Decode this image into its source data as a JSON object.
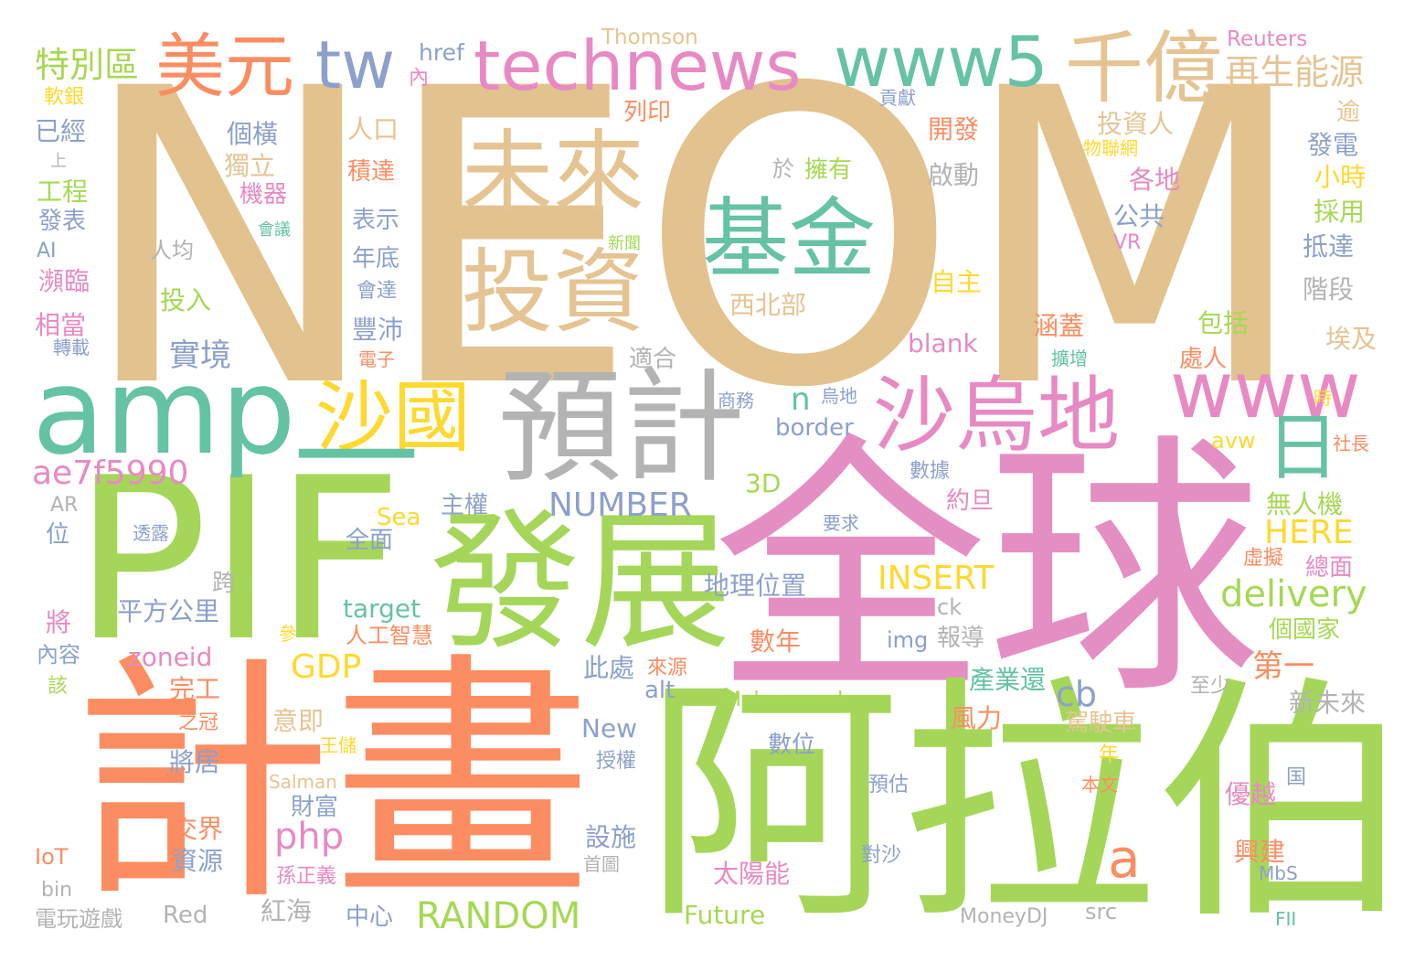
{
  "words": [
    {
      "text": "NEOM",
      "color": "#e2c28f"
    },
    {
      "text": "全球",
      "color": "#e48fc4"
    },
    {
      "text": "阿拉伯",
      "color": "#a5d65a"
    },
    {
      "text": "計畫",
      "color": "#fc8d62"
    },
    {
      "text": "PIF",
      "color": "#a5d65a"
    },
    {
      "text": "發展",
      "color": "#a5d65a"
    },
    {
      "text": "amp",
      "color": "#66c2a5"
    },
    {
      "text": "預計",
      "color": "#b3b3b3"
    },
    {
      "text": "沙烏地",
      "color": "#e78ac3"
    },
    {
      "text": "沙國",
      "color": "#ffd92f"
    },
    {
      "text": "基金",
      "color": "#66c2a5"
    },
    {
      "text": "未來",
      "color": "#e5c494"
    },
    {
      "text": "投資",
      "color": "#e5c494"
    },
    {
      "text": "technews",
      "color": "#e78ac3"
    },
    {
      "text": "www5",
      "color": "#66c2a5"
    },
    {
      "text": "千億",
      "color": "#e5c494"
    },
    {
      "text": "美元",
      "color": "#fc8d62"
    },
    {
      "text": "tw",
      "color": "#8da0cb"
    },
    {
      "text": "www",
      "color": "#e78ac3"
    },
    {
      "text": "日",
      "color": "#66c2a5"
    },
    {
      "text": "—",
      "color": "#66c2a5"
    },
    {
      "text": "特別區",
      "color": "#a6d854"
    },
    {
      "text": "再生能源",
      "color": "#e5c494"
    },
    {
      "text": "ae7f5990",
      "color": "#e78ac3"
    },
    {
      "text": "NUMBER",
      "color": "#8da0cb"
    },
    {
      "text": "RANDOM",
      "color": "#a6d854"
    },
    {
      "text": "delivery",
      "color": "#a6d854"
    },
    {
      "text": "HERE",
      "color": "#ffd92f"
    },
    {
      "text": "INSERT",
      "color": "#ffd92f"
    },
    {
      "text": "php",
      "color": "#e78ac3"
    },
    {
      "text": "a",
      "color": "#fc8d62"
    },
    {
      "text": "cb",
      "color": "#8da0cb"
    },
    {
      "text": "GDP",
      "color": "#ffd92f"
    },
    {
      "text": "實境",
      "color": "#8da0cb"
    },
    {
      "text": "n",
      "color": "#66c2a5"
    },
    {
      "text": "第一",
      "color": "#fc8d62"
    },
    {
      "text": "href",
      "color": "#8da0cb"
    },
    {
      "text": "Thomson",
      "color": "#e5c494"
    },
    {
      "text": "Reuters",
      "color": "#e78ac3"
    },
    {
      "text": "軟銀",
      "color": "#ffd92f"
    },
    {
      "text": "已經",
      "color": "#8da0cb"
    },
    {
      "text": "上",
      "color": "#b3b3b3"
    },
    {
      "text": "工程",
      "color": "#a6d854"
    },
    {
      "text": "發表",
      "color": "#8da0cb"
    },
    {
      "text": "AI",
      "color": "#8da0cb"
    },
    {
      "text": "瀕臨",
      "color": "#e78ac3"
    },
    {
      "text": "相當",
      "color": "#e78ac3"
    },
    {
      "text": "轉載",
      "color": "#8da0cb"
    },
    {
      "text": "內",
      "color": "#e78ac3"
    },
    {
      "text": "列印",
      "color": "#fc8d62"
    },
    {
      "text": "貢獻",
      "color": "#8da0cb"
    },
    {
      "text": "個橫",
      "color": "#8da0cb"
    },
    {
      "text": "人口",
      "color": "#e5c494"
    },
    {
      "text": "獨立",
      "color": "#e5c494"
    },
    {
      "text": "積達",
      "color": "#fc8d62"
    },
    {
      "text": "機器",
      "color": "#e78ac3"
    },
    {
      "text": "會議",
      "color": "#66c2a5"
    },
    {
      "text": "人均",
      "color": "#b3b3b3"
    },
    {
      "text": "表示",
      "color": "#8da0cb"
    },
    {
      "text": "年底",
      "color": "#8da0cb"
    },
    {
      "text": "新聞",
      "color": "#a6d854"
    },
    {
      "text": "會達",
      "color": "#8da0cb"
    },
    {
      "text": "豐沛",
      "color": "#8da0cb"
    },
    {
      "text": "投入",
      "color": "#a6d854"
    },
    {
      "text": "電子",
      "color": "#fc8d62"
    },
    {
      "text": "開發",
      "color": "#fc8d62"
    },
    {
      "text": "投資人",
      "color": "#e5c494"
    },
    {
      "text": "逾",
      "color": "#e5c494"
    },
    {
      "text": "物聯網",
      "color": "#ffd92f"
    },
    {
      "text": "發電",
      "color": "#8da0cb"
    },
    {
      "text": "於",
      "color": "#b3b3b3"
    },
    {
      "text": "擁有",
      "color": "#a6d854"
    },
    {
      "text": "啟動",
      "color": "#b3b3b3"
    },
    {
      "text": "各地",
      "color": "#e78ac3"
    },
    {
      "text": "小時",
      "color": "#ffd92f"
    },
    {
      "text": "公共",
      "color": "#8da0cb"
    },
    {
      "text": "採用",
      "color": "#a6d854"
    },
    {
      "text": "VR",
      "color": "#e78ac3"
    },
    {
      "text": "抵達",
      "color": "#8da0cb"
    },
    {
      "text": "自主",
      "color": "#ffd92f"
    },
    {
      "text": "階段",
      "color": "#b3b3b3"
    },
    {
      "text": "西北部",
      "color": "#e5c494"
    },
    {
      "text": "包括",
      "color": "#a6d854"
    },
    {
      "text": "blank",
      "color": "#e78ac3"
    },
    {
      "text": "涵蓋",
      "color": "#fc8d62"
    },
    {
      "text": "埃及",
      "color": "#e5c494"
    },
    {
      "text": "適合",
      "color": "#b3b3b3"
    },
    {
      "text": "擴增",
      "color": "#66c2a5"
    },
    {
      "text": "處人",
      "color": "#fc8d62"
    },
    {
      "text": "商務",
      "color": "#8da0cb"
    },
    {
      "text": "烏地",
      "color": "#8da0cb"
    },
    {
      "text": "時",
      "color": "#ffd92f"
    },
    {
      "text": "border",
      "color": "#8da0cb"
    },
    {
      "text": "avw",
      "color": "#ffd92f"
    },
    {
      "text": "社長",
      "color": "#fc8d62"
    },
    {
      "text": "3D",
      "color": "#a6d854"
    },
    {
      "text": "數據",
      "color": "#8da0cb"
    },
    {
      "text": "約旦",
      "color": "#e78ac3"
    },
    {
      "text": "無人機",
      "color": "#a6d854"
    },
    {
      "text": "AR",
      "color": "#b3b3b3"
    },
    {
      "text": "位",
      "color": "#8da0cb"
    },
    {
      "text": "透露",
      "color": "#8da0cb"
    },
    {
      "text": "主權",
      "color": "#8da0cb"
    },
    {
      "text": "Sea",
      "color": "#ffd92f"
    },
    {
      "text": "要求",
      "color": "#8da0cb"
    },
    {
      "text": "全面",
      "color": "#8da0cb"
    },
    {
      "text": "虛擬",
      "color": "#fc8d62"
    },
    {
      "text": "總面",
      "color": "#e78ac3"
    },
    {
      "text": "跨",
      "color": "#b3b3b3"
    },
    {
      "text": "地理位置",
      "color": "#8da0cb"
    },
    {
      "text": "將",
      "color": "#e78ac3"
    },
    {
      "text": "平方公里",
      "color": "#8da0cb"
    },
    {
      "text": "target",
      "color": "#66c2a5"
    },
    {
      "text": "ck",
      "color": "#b3b3b3"
    },
    {
      "text": "參",
      "color": "#ffd92f"
    },
    {
      "text": "人工智慧",
      "color": "#fc8d62"
    },
    {
      "text": "報導",
      "color": "#b3b3b3"
    },
    {
      "text": "img",
      "color": "#8da0cb"
    },
    {
      "text": "個國家",
      "color": "#a6d854"
    },
    {
      "text": "內容",
      "color": "#8da0cb"
    },
    {
      "text": "zoneid",
      "color": "#e78ac3"
    },
    {
      "text": "數年",
      "color": "#fc8d62"
    },
    {
      "text": "該",
      "color": "#a6d854"
    },
    {
      "text": "完工",
      "color": "#fc8d62"
    },
    {
      "text": "此處",
      "color": "#8da0cb"
    },
    {
      "text": "來源",
      "color": "#fc8d62"
    },
    {
      "text": "alt",
      "color": "#8da0cb"
    },
    {
      "text": "產業還",
      "color": "#66c2a5"
    },
    {
      "text": "至少",
      "color": "#b3b3b3"
    },
    {
      "text": "新未來",
      "color": "#b3b3b3"
    },
    {
      "text": "之冠",
      "color": "#fc8d62"
    },
    {
      "text": "意即",
      "color": "#e5c494"
    },
    {
      "text": "Mohammed",
      "color": "#a6d854"
    },
    {
      "text": "風力",
      "color": "#fc8d62"
    },
    {
      "text": "駕駛車",
      "color": "#e5c494"
    },
    {
      "text": "New",
      "color": "#8da0cb"
    },
    {
      "text": "王儲",
      "color": "#ffd92f"
    },
    {
      "text": "數位",
      "color": "#8da0cb"
    },
    {
      "text": "授權",
      "color": "#8da0cb"
    },
    {
      "text": "年",
      "color": "#ffd92f"
    },
    {
      "text": "將居",
      "color": "#8da0cb"
    },
    {
      "text": "Salman",
      "color": "#e5c494"
    },
    {
      "text": "預估",
      "color": "#8da0cb"
    },
    {
      "text": "本文",
      "color": "#fc8d62"
    },
    {
      "text": "国",
      "color": "#8da0cb"
    },
    {
      "text": "優越",
      "color": "#e78ac3"
    },
    {
      "text": "財富",
      "color": "#8da0cb"
    },
    {
      "text": "交界",
      "color": "#fc8d62"
    },
    {
      "text": "設施",
      "color": "#8da0cb"
    },
    {
      "text": "IoT",
      "color": "#fc8d62"
    },
    {
      "text": "資源",
      "color": "#8da0cb"
    },
    {
      "text": "對沙",
      "color": "#8da0cb"
    },
    {
      "text": "興建",
      "color": "#fc8d62"
    },
    {
      "text": "首圖",
      "color": "#b3b3b3"
    },
    {
      "text": "太陽能",
      "color": "#e78ac3"
    },
    {
      "text": "孫正義",
      "color": "#e78ac3"
    },
    {
      "text": "MbS",
      "color": "#8da0cb"
    },
    {
      "text": "bin",
      "color": "#b3b3b3"
    },
    {
      "text": "Red",
      "color": "#b3b3b3"
    },
    {
      "text": "紅海",
      "color": "#b3b3b3"
    },
    {
      "text": "src",
      "color": "#b3b3b3"
    },
    {
      "text": "電玩遊戲",
      "color": "#b3b3b3"
    },
    {
      "text": "中心",
      "color": "#8da0cb"
    },
    {
      "text": "Future",
      "color": "#a6d854"
    },
    {
      "text": "MoneyDJ",
      "color": "#b3b3b3"
    },
    {
      "text": "FII",
      "color": "#66c2a5"
    }
  ]
}
